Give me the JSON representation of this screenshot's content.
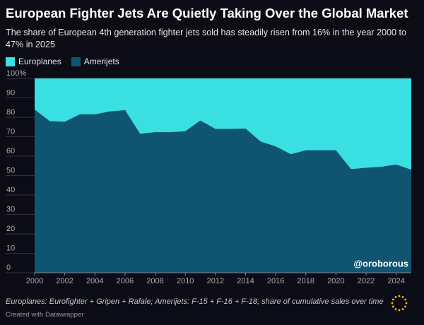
{
  "chart_data": {
    "type": "area",
    "stacked": true,
    "title": "European Fighter Jets Are Quietly Taking Over the Global Market",
    "subtitle": "The share of European 4th generation fighter jets sold has steadily risen from 16% in the year 2000 to 47% in 2025",
    "x": [
      2000,
      2001,
      2002,
      2003,
      2004,
      2005,
      2006,
      2007,
      2008,
      2009,
      2010,
      2011,
      2012,
      2013,
      2014,
      2015,
      2016,
      2017,
      2018,
      2019,
      2020,
      2021,
      2022,
      2023,
      2024,
      2025
    ],
    "series": [
      {
        "name": "Europlanes",
        "color": "#3adfe2",
        "values": [
          16,
          22,
          22.3,
          18.5,
          18.5,
          17,
          16.3,
          28.5,
          27.7,
          27.7,
          27.2,
          21.7,
          26,
          26,
          25.8,
          32.5,
          35,
          39,
          37,
          37,
          37,
          46.7,
          46,
          45.5,
          44.3,
          47
        ]
      },
      {
        "name": "Amerijets",
        "color": "#0f5571",
        "values": [
          84,
          78,
          77.7,
          81.5,
          81.5,
          83,
          83.7,
          71.5,
          72.3,
          72.3,
          72.8,
          78.3,
          74,
          74,
          74.2,
          67.5,
          65,
          61,
          63,
          63,
          63,
          53.3,
          54,
          54.5,
          55.7,
          53
        ]
      }
    ],
    "xlim": [
      2000,
      2025
    ],
    "xticks": [
      2000,
      2002,
      2004,
      2006,
      2008,
      2010,
      2012,
      2014,
      2016,
      2018,
      2020,
      2022,
      2024
    ],
    "ylim": [
      0,
      100
    ],
    "yticks": [
      0,
      10,
      20,
      30,
      40,
      50,
      60,
      70,
      80,
      90,
      {
        "value": 100,
        "label": "100%"
      }
    ],
    "grid": true,
    "legend": "top",
    "watermark": "@oroborous",
    "note": "Europlanes: Eurofighter + Gripen + Rafale; Amerijets: F-15 + F-16 + F-18; share of cumulative sales over time",
    "credit": "Created with Datawrapper"
  }
}
